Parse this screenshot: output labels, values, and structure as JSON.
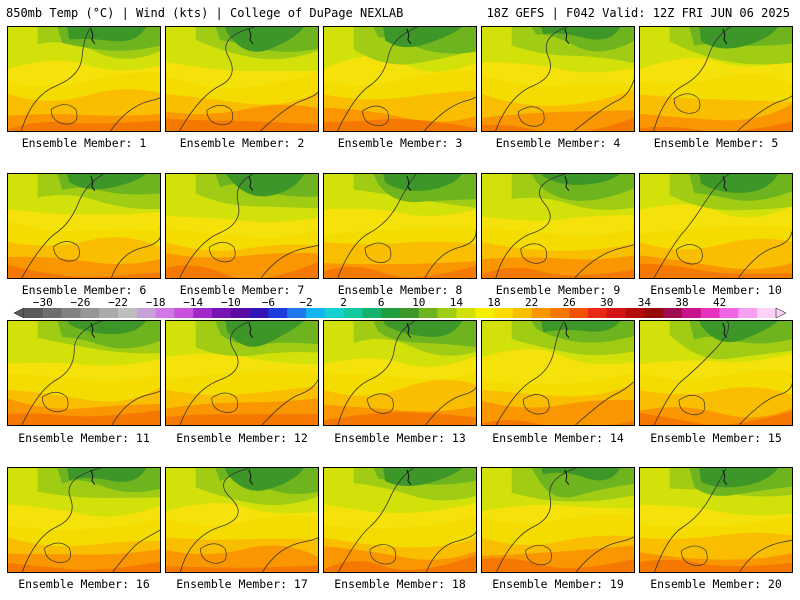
{
  "header": {
    "left_title": "850mb Temp (°C) | Wind (kts) | College of DuPage NEXLAB",
    "right_title": "18Z GEFS | F042 Valid: 12Z FRI JUN 06 2025"
  },
  "member_label_prefix": "Ensemble Member:",
  "members": [
    {
      "label": "Ensemble Member: 1"
    },
    {
      "label": "Ensemble Member: 2"
    },
    {
      "label": "Ensemble Member: 3"
    },
    {
      "label": "Ensemble Member: 4"
    },
    {
      "label": "Ensemble Member: 5"
    },
    {
      "label": "Ensemble Member: 6"
    },
    {
      "label": "Ensemble Member: 7"
    },
    {
      "label": "Ensemble Member: 8"
    },
    {
      "label": "Ensemble Member: 9"
    },
    {
      "label": "Ensemble Member: 10"
    },
    {
      "label": "Ensemble Member: 11"
    },
    {
      "label": "Ensemble Member: 12"
    },
    {
      "label": "Ensemble Member: 13"
    },
    {
      "label": "Ensemble Member: 14"
    },
    {
      "label": "Ensemble Member: 15"
    },
    {
      "label": "Ensemble Member: 16"
    },
    {
      "label": "Ensemble Member: 17"
    },
    {
      "label": "Ensemble Member: 18"
    },
    {
      "label": "Ensemble Member: 19"
    },
    {
      "label": "Ensemble Member: 20"
    }
  ],
  "colorbar": {
    "labels": [
      "-30",
      "-26",
      "-22",
      "-18",
      "-14",
      "-10",
      "-6",
      "-2",
      "2",
      "6",
      "10",
      "14",
      "18",
      "22",
      "26",
      "30",
      "34",
      "38",
      "42"
    ],
    "colors": [
      "#5a5a5a",
      "#6e6e6e",
      "#828282",
      "#969696",
      "#aaaaaa",
      "#bebebe",
      "#c8a0d8",
      "#d278e6",
      "#c850dc",
      "#a028c8",
      "#7814b4",
      "#5a0aa0",
      "#3214b4",
      "#1e3cdc",
      "#1e78f0",
      "#14b4f0",
      "#14d2d2",
      "#14c8a0",
      "#14b46e",
      "#1e9e3c",
      "#3c9628",
      "#6eb41e",
      "#a0cd14",
      "#d2e10a",
      "#f5f000",
      "#fadc00",
      "#fabe00",
      "#fa9600",
      "#f57800",
      "#f05000",
      "#e62814",
      "#d21414",
      "#b40a0a",
      "#960a0a",
      "#a00a50",
      "#c8148c",
      "#e632be",
      "#f064e6",
      "#f8a0f0",
      "#fcd2f8"
    ]
  }
}
